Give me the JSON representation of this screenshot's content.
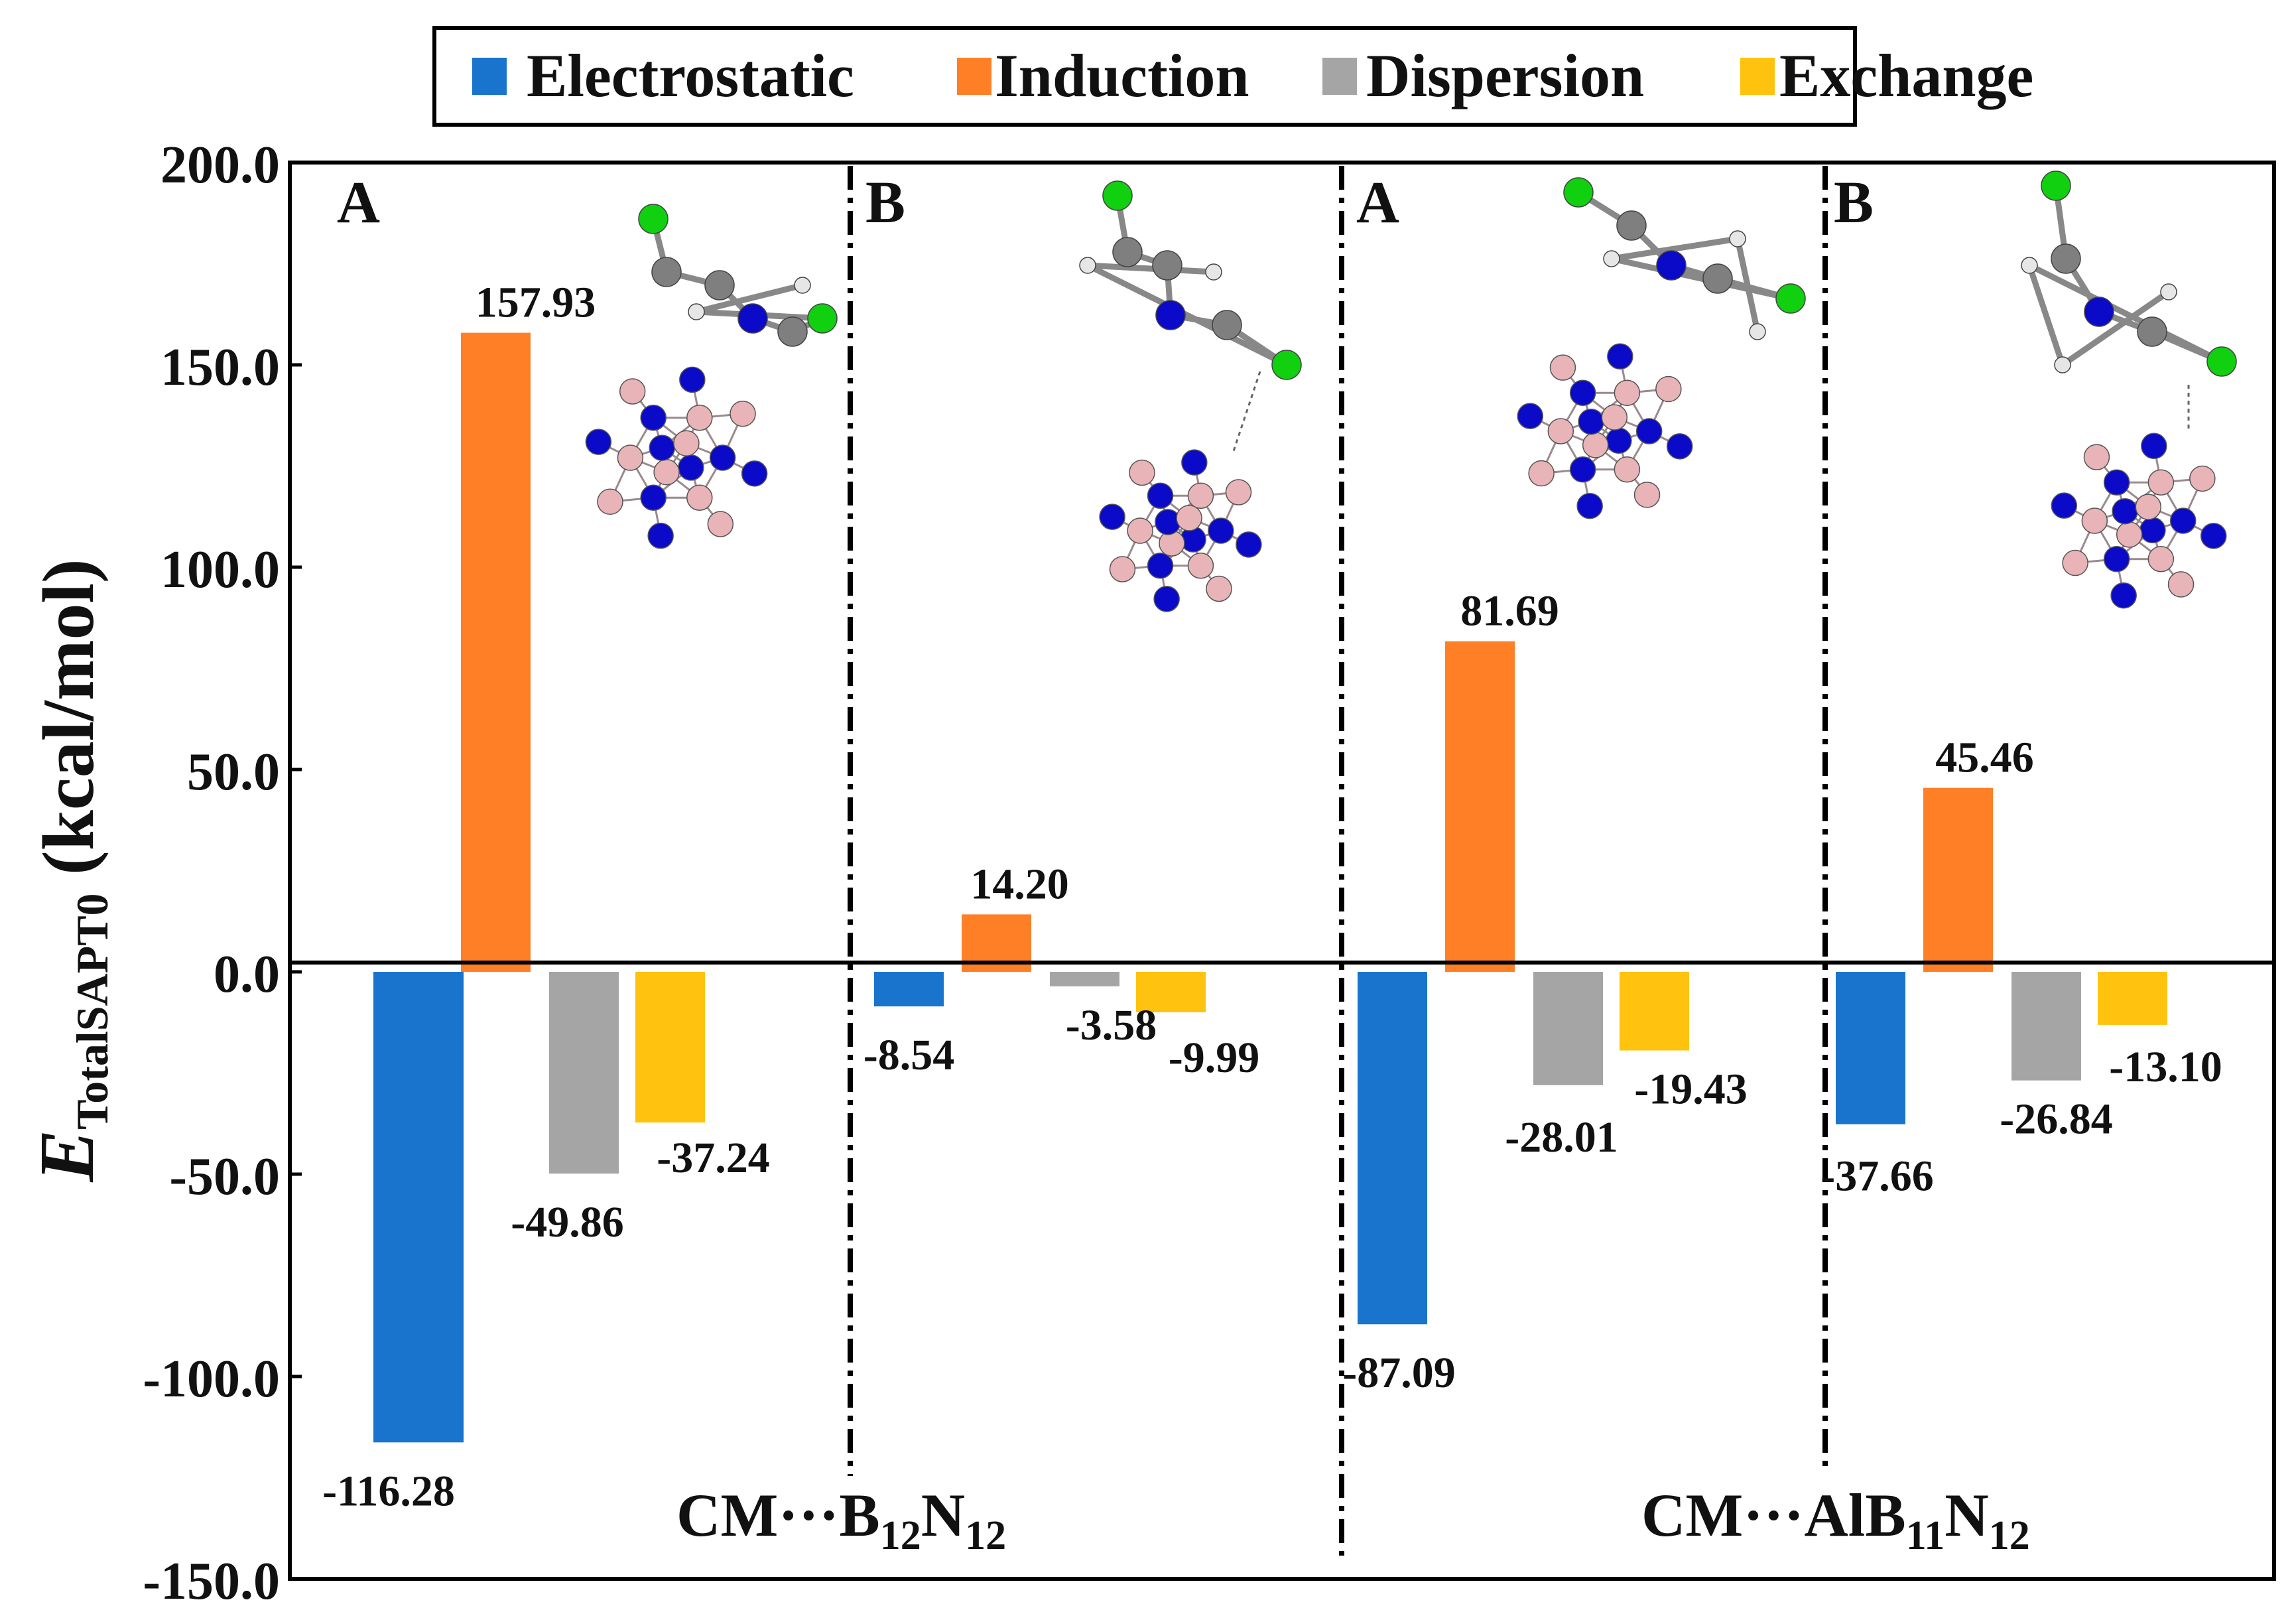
{
  "chart_data": {
    "type": "bar",
    "title": "",
    "ylabel_main": "E",
    "ylabel_sub": "TotalSAPT0",
    "ylabel_unit": " (kcal/mol)",
    "xlabel": "",
    "ylim": [
      -150,
      200
    ],
    "yticks": [
      200,
      150,
      100,
      50,
      0,
      -50,
      -100,
      -150
    ],
    "ytick_labels": [
      "200.0",
      "150.0",
      "100.0",
      "50.0",
      "0.0",
      "-50.0",
      "-100.0",
      "-150.0"
    ],
    "legend": {
      "position": "top-center",
      "entries": [
        {
          "name": "Electrostatic",
          "color": "#1874CD"
        },
        {
          "name": "Induction",
          "color": "#FF7F27"
        },
        {
          "name": "Dispersion",
          "color": "#A5A5A5"
        },
        {
          "name": "Exchange",
          "color": "#FFC20E"
        }
      ]
    },
    "groups": [
      {
        "panel": "A",
        "values": [
          -116.28,
          157.93,
          -49.86,
          -37.24
        ],
        "labels": [
          "-116.28",
          "157.93",
          "-49.86",
          "-37.24"
        ]
      },
      {
        "panel": "B",
        "values": [
          -8.54,
          14.2,
          -3.58,
          -9.99
        ],
        "labels": [
          "-8.54",
          "14.20",
          "-3.58",
          "-9.99"
        ]
      },
      {
        "panel": "A",
        "values": [
          -87.09,
          81.69,
          -28.01,
          -19.43
        ],
        "labels": [
          "-87.09",
          "81.69",
          "-28.01",
          "-19.43"
        ]
      },
      {
        "panel": "B",
        "values": [
          -37.66,
          45.46,
          -26.84,
          -13.1
        ],
        "labels": [
          "-37.66",
          "45.46",
          "-26.84",
          "-13.10"
        ]
      }
    ],
    "systems": [
      {
        "prefix": "CM···",
        "parts": [
          {
            "t": "B",
            "s": false
          },
          {
            "t": "12",
            "s": true
          },
          {
            "t": "N",
            "s": false
          },
          {
            "t": "12",
            "s": true
          }
        ]
      },
      {
        "prefix": "CM···",
        "parts": [
          {
            "t": "AlB",
            "s": false
          },
          {
            "t": "11",
            "s": true
          },
          {
            "t": "N",
            "s": false
          },
          {
            "t": "12",
            "s": true
          }
        ]
      }
    ],
    "grid": false,
    "notes": "Molecular structure insets (CM on B12N12 / AlB11N12 cages) drawn as decorative ball-and-stick icons."
  },
  "colors": {
    "electrostatic": "#1874CD",
    "induction": "#FF7F27",
    "dispersion": "#A5A5A5",
    "exchange": "#FFC20E",
    "nitrogen_atom": "#0A0AC8",
    "boron_atom": "#E8B4B8",
    "chlorine_atom": "#10D010",
    "carbon_atom": "#7F7F7F",
    "hydrogen_atom": "#E6E6E6"
  }
}
